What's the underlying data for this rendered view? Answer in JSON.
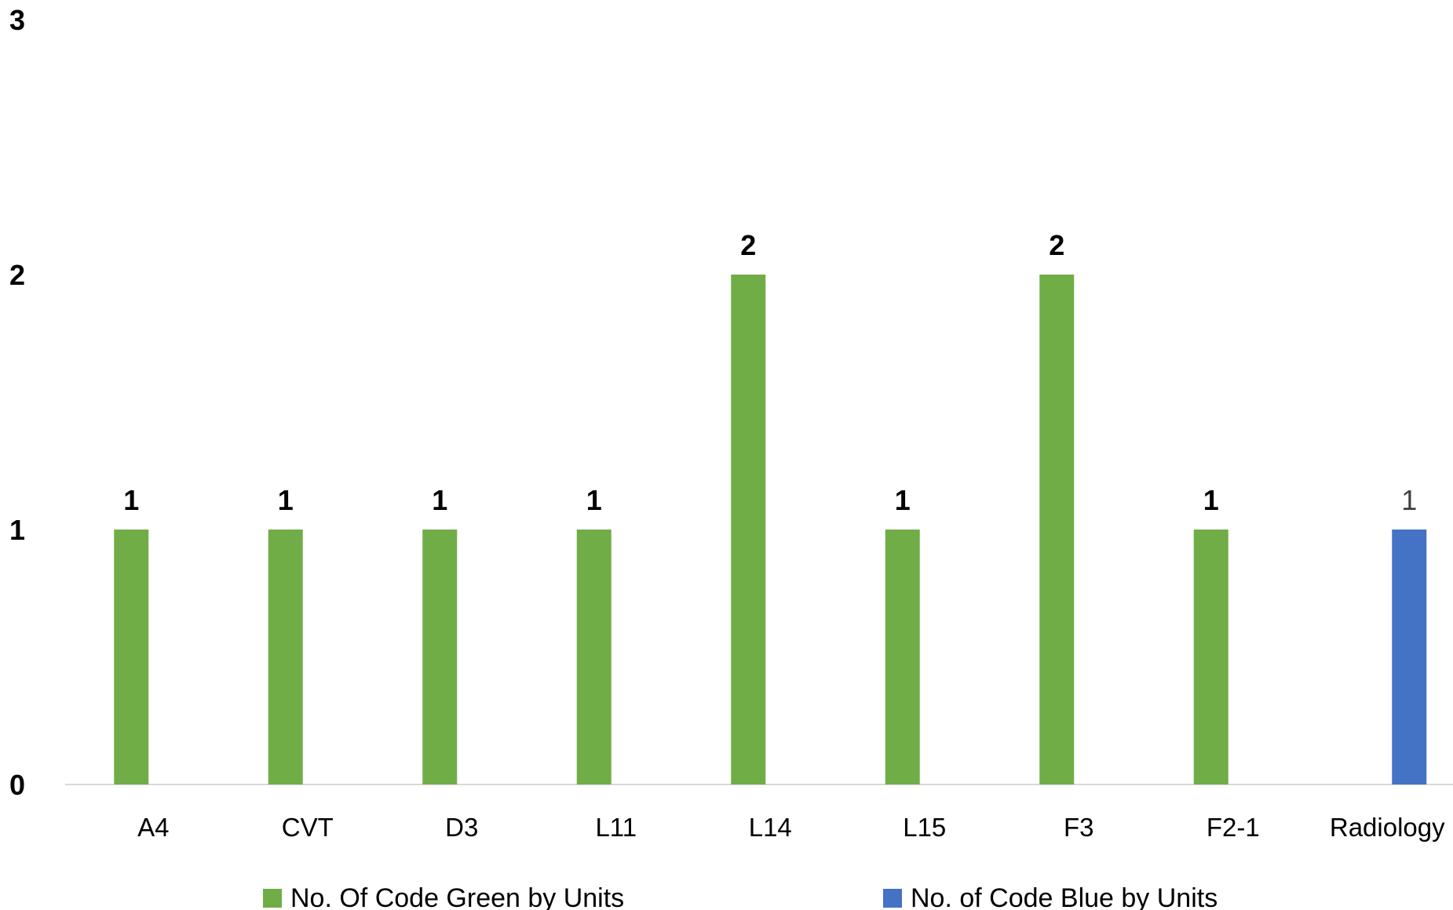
{
  "chart_data": {
    "type": "bar",
    "categories": [
      "A4",
      "CVT",
      "D3",
      "L11",
      "L14",
      "L15",
      "F3",
      "F2-1",
      "Radiology"
    ],
    "series": [
      {
        "name": "No. Of Code Green by Units",
        "color": "#70AD47",
        "values": [
          1,
          1,
          1,
          1,
          2,
          1,
          2,
          1,
          null
        ]
      },
      {
        "name": "No. of Code Blue by Units",
        "color": "#4472C4",
        "values": [
          null,
          null,
          null,
          null,
          null,
          null,
          null,
          null,
          1
        ]
      }
    ],
    "yticks": [
      "0",
      "1",
      "2",
      "3"
    ],
    "ylim": [
      0,
      3
    ],
    "title": "",
    "xlabel": "",
    "ylabel": "",
    "grid": false,
    "legend_position": "bottom",
    "data_labels": true
  }
}
